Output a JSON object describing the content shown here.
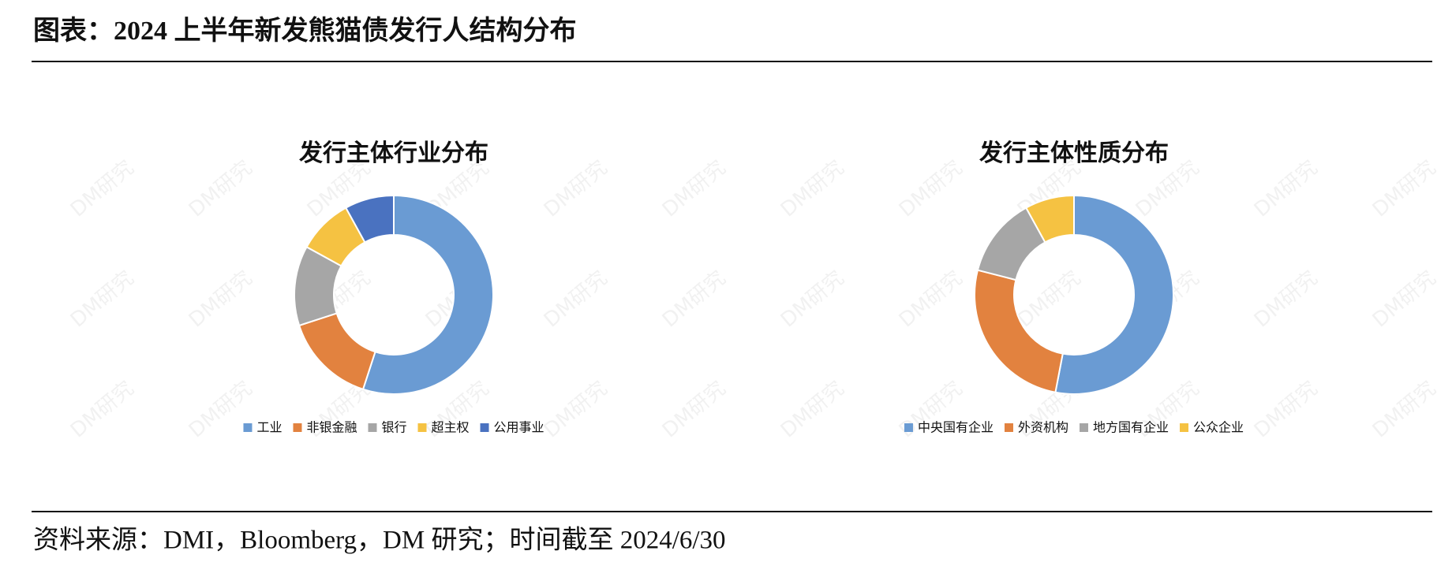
{
  "title": "图表：2024 上半年新发熊猫债发行人结构分布",
  "source": "资料来源：DMI，Bloomberg，DM 研究；时间截至 2024/6/30",
  "watermark": "DM研究",
  "chart_data": [
    {
      "type": "donut",
      "title": "发行主体行业分布",
      "categories": [
        "工业",
        "非银金融",
        "银行",
        "超主权",
        "公用事业"
      ],
      "values": [
        55,
        15,
        13,
        9,
        8
      ],
      "colors": [
        "#6a9bd3",
        "#e2823f",
        "#a6a6a6",
        "#f5c242",
        "#4a72c0"
      ]
    },
    {
      "type": "donut",
      "title": "发行主体性质分布",
      "categories": [
        "中央国有企业",
        "外资机构",
        "地方国有企业",
        "公众企业"
      ],
      "values": [
        53,
        26,
        13,
        8
      ],
      "colors": [
        "#6a9bd3",
        "#e2823f",
        "#a6a6a6",
        "#f5c242"
      ]
    }
  ]
}
